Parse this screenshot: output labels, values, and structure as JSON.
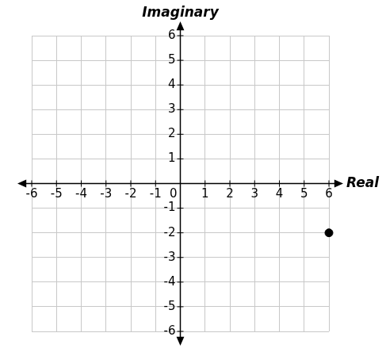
{
  "chart_data": {
    "type": "scatter",
    "x_label": "Real",
    "y_label": "Imaginary",
    "x": [
      6
    ],
    "values": [
      -2
    ],
    "color": "#000000",
    "xlim": [
      -6,
      6
    ],
    "ylim": [
      -6,
      6
    ],
    "xticks": [
      -6,
      -5,
      -4,
      -3,
      -2,
      -1,
      0,
      1,
      2,
      3,
      4,
      5,
      6
    ],
    "yticks": [
      -6,
      -5,
      -4,
      -3,
      -2,
      -1,
      1,
      2,
      3,
      4,
      5,
      6
    ],
    "grid": true
  }
}
